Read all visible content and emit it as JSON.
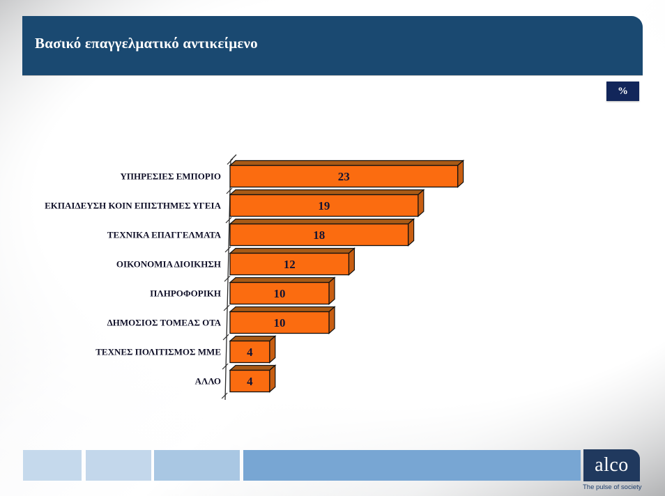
{
  "slide": {
    "title": "Βασικό επαγγελματικό αντικείμενο",
    "banner_color": "#1A4971",
    "badge_label": "%",
    "badge_bg": "#12265A"
  },
  "chart_data": {
    "type": "bar",
    "orientation": "horizontal",
    "title": "Βασικό επαγγελματικό αντικείμενο",
    "unit": "%",
    "categories": [
      "ΥΠΗΡΕΣΙΕΣ ΕΜΠΟΡΙΟ",
      "ΕΚΠΑΙΔΕΥΣΗ ΚΟΙΝ ΕΠΙΣΤΗΜΕΣ ΥΓΕΙΑ",
      "ΤΕΧΝΙΚΑ ΕΠΑΓΓΕΛΜΑΤΑ",
      "ΟΙΚΟΝΟΜΙΑ ΔΙΟΙΚΗΣΗ",
      "ΠΛΗΡΟΦΟΡΙΚΗ",
      "ΔΗΜΟΣΙΟΣ ΤΟΜΕΑΣ ΟΤΑ",
      "ΤΕΧΝΕΣ ΠΟΛΙΤΙΣΜΟΣ  ΜΜΕ",
      "ΑΛΛΟ"
    ],
    "values": [
      23,
      19,
      18,
      12,
      10,
      10,
      4,
      4
    ],
    "value_labels_shown": true,
    "xlabel": "",
    "ylabel": "",
    "xlim": [
      0,
      25
    ],
    "grid": false,
    "legend": "none",
    "bar_front_color": "#FB6C10",
    "bar_top_color": "#A85A16",
    "bar_side_color": "#C85E12",
    "bar_outline_color": "#111111",
    "value_label_color": "#141432",
    "category_label_color": "#101028",
    "axis_color": "#2a2a2a"
  },
  "footer": {
    "bar_colors": [
      "#C5D9EC",
      "#C3D7EB",
      "#A9C7E3",
      "#78A6D3"
    ],
    "logo_text": "alco",
    "logo_bg": "#20395E",
    "tagline": "The pulse of society"
  }
}
